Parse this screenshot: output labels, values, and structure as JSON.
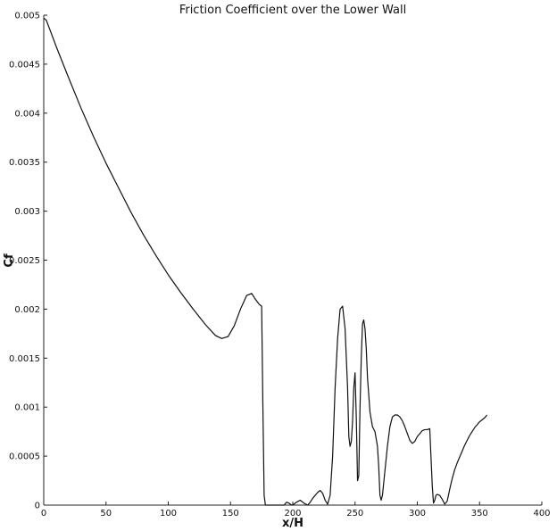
{
  "chart_data": {
    "type": "line",
    "title": "Friction Coefficient over the Lower Wall",
    "xlabel": "x/H",
    "ylabel": "Cf",
    "xlim": [
      0,
      400
    ],
    "ylim": [
      0,
      0.005
    ],
    "xticks": [
      0,
      50,
      100,
      150,
      200,
      250,
      300,
      350,
      400
    ],
    "xtick_labels": [
      "0",
      "50",
      "100",
      "150",
      "200",
      "250",
      "300",
      "350",
      "400"
    ],
    "yticks": [
      0,
      0.0005,
      0.001,
      0.0015,
      0.002,
      0.0025,
      0.003,
      0.0035,
      0.004,
      0.0045,
      0.005
    ],
    "ytick_labels": [
      "0",
      "0.0005",
      "0.001",
      "0.0015",
      "0.002",
      "0.0025",
      "0.003",
      "0.0035",
      "0.004",
      "0.0045",
      "0.005"
    ],
    "grid": false,
    "series": [
      {
        "x": [
          0,
          2,
          5,
          10,
          20,
          30,
          40,
          50,
          60,
          70,
          80,
          90,
          100,
          110,
          120,
          130,
          138,
          143,
          148,
          153,
          158,
          163,
          167,
          170,
          173,
          175,
          176,
          177,
          178,
          180,
          185,
          190,
          193,
          195,
          197,
          199,
          201,
          203,
          206,
          209,
          212,
          214,
          216,
          218,
          220,
          222,
          224,
          226,
          228,
          230,
          232,
          234,
          236,
          238,
          240,
          242,
          244,
          245,
          246,
          247,
          248,
          249,
          250,
          251,
          252,
          253,
          254,
          255,
          256,
          257,
          258,
          259,
          260,
          262,
          264,
          266,
          268,
          269,
          270,
          271,
          272,
          274,
          276,
          278,
          280,
          282,
          284,
          286,
          288,
          290,
          292,
          294,
          296,
          298,
          300,
          302,
          304,
          306,
          308,
          310,
          312,
          313,
          314,
          315,
          316,
          318,
          320,
          322,
          324,
          326,
          328,
          330,
          332,
          334,
          336,
          338,
          340,
          342,
          344,
          346,
          348,
          350,
          352,
          354,
          356
        ],
        "values": [
          0.00497,
          0.00495,
          0.00485,
          0.00468,
          0.00436,
          0.00405,
          0.00376,
          0.00349,
          0.00324,
          0.00299,
          0.00276,
          0.00255,
          0.00235,
          0.00217,
          0.002,
          0.00184,
          0.00173,
          0.0017,
          0.00172,
          0.00183,
          0.002,
          0.00214,
          0.00216,
          0.0021,
          0.00205,
          0.00203,
          0.001,
          0.0001,
          0.0,
          0.0,
          0.0,
          0.0,
          0.0,
          3e-05,
          2e-05,
          0.0,
          1e-05,
          3e-05,
          5e-05,
          2e-05,
          0.0,
          3e-05,
          7e-05,
          0.0001,
          0.00013,
          0.00015,
          0.00012,
          5e-05,
          1e-05,
          0.0001,
          0.0005,
          0.0012,
          0.0017,
          0.002,
          0.00203,
          0.0018,
          0.0012,
          0.0007,
          0.0006,
          0.00065,
          0.00085,
          0.0012,
          0.00135,
          0.0009,
          0.00025,
          0.0003,
          0.001,
          0.0015,
          0.00185,
          0.00189,
          0.0018,
          0.0016,
          0.0013,
          0.00095,
          0.0008,
          0.00075,
          0.0006,
          0.0004,
          0.0001,
          5e-05,
          0.0001,
          0.00035,
          0.0006,
          0.0008,
          0.0009,
          0.00092,
          0.00092,
          0.0009,
          0.00086,
          0.0008,
          0.00073,
          0.00066,
          0.00063,
          0.00065,
          0.0007,
          0.00073,
          0.00076,
          0.00077,
          0.00077,
          0.00078,
          0.0002,
          2e-05,
          5e-05,
          0.0001,
          0.00011,
          0.0001,
          6e-05,
          1e-05,
          4e-05,
          0.00016,
          0.00027,
          0.00036,
          0.00043,
          0.00049,
          0.00055,
          0.00061,
          0.00066,
          0.00071,
          0.00075,
          0.00079,
          0.00082,
          0.00085,
          0.00087,
          0.00089,
          0.00092
        ]
      }
    ]
  }
}
